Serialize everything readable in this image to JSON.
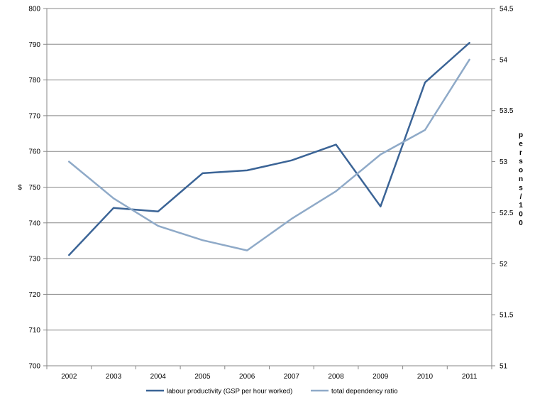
{
  "chart_data": {
    "type": "line",
    "title": "",
    "xlabel": "",
    "categories": [
      "2002",
      "2003",
      "2004",
      "2005",
      "2006",
      "2007",
      "2008",
      "2009",
      "2010",
      "2011"
    ],
    "y_left": {
      "label": "$",
      "range": [
        700,
        800
      ],
      "ticks": [
        "700",
        "710",
        "720",
        "730",
        "740",
        "750",
        "760",
        "770",
        "780",
        "790",
        "800"
      ]
    },
    "y_right": {
      "label": "persons/100",
      "range": [
        51,
        54.5
      ],
      "ticks": [
        "51",
        "51.5",
        "52",
        "52.5",
        "53",
        "53.5",
        "54",
        "54.5"
      ]
    },
    "series": [
      {
        "name": "labour productivity (GSP per hour worked)",
        "axis": "left",
        "color": "#3b6496",
        "values": [
          731,
          744.2,
          743.2,
          753.9,
          754.7,
          757.5,
          761.9,
          744.6,
          779.3,
          790.4
        ]
      },
      {
        "name": "total dependency ratio",
        "axis": "right",
        "color": "#8faac8",
        "values": [
          53.0,
          52.64,
          52.37,
          52.23,
          52.13,
          52.44,
          52.71,
          53.07,
          53.31,
          54.0
        ]
      }
    ],
    "grid": "horizontal",
    "legend_position": "bottom"
  }
}
